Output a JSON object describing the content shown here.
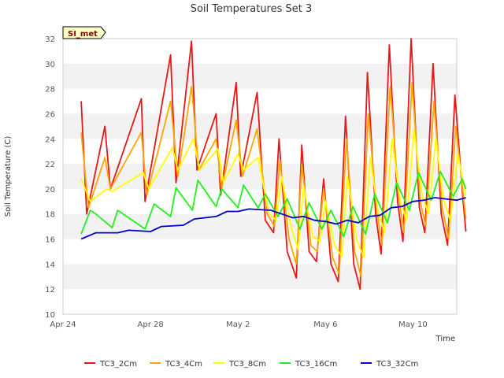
{
  "chart_data": {
    "type": "line",
    "title": "Soil Temperatures Set 3",
    "xlabel": "Time",
    "ylabel": "Soil Temperature (C)",
    "site_label": "SI_met",
    "xlim": [
      "2024-04-24",
      "2024-05-12"
    ],
    "ylim": [
      10,
      32
    ],
    "x_ticks": [
      "Apr 24",
      "Apr 28",
      "May 2",
      "May 6",
      "May 10"
    ],
    "y_ticks": [
      10,
      12,
      14,
      16,
      18,
      20,
      22,
      24,
      26,
      28,
      30,
      32
    ],
    "grid": "horizontal bands",
    "legend_position": "bottom",
    "series": [
      {
        "name": "TC3_2Cm",
        "color": "#e81818",
        "points": [
          [
            "2024-04-24 20:00",
            27.0
          ],
          [
            "2024-04-25 02:00",
            18.0
          ],
          [
            "2024-04-25 22:00",
            25.0
          ],
          [
            "2024-04-26 04:00",
            20.0
          ],
          [
            "2024-04-27 14:00",
            27.2
          ],
          [
            "2024-04-27 18:00",
            19.0
          ],
          [
            "2024-04-28 22:00",
            30.7
          ],
          [
            "2024-04-29 04:00",
            20.5
          ],
          [
            "2024-04-29 21:00",
            31.8
          ],
          [
            "2024-04-30 03:00",
            21.5
          ],
          [
            "2024-05-01 00:00",
            26.0
          ],
          [
            "2024-05-01 05:00",
            19.5
          ],
          [
            "2024-05-01 22:00",
            28.5
          ],
          [
            "2024-05-02 03:00",
            21.0
          ],
          [
            "2024-05-02 21:00",
            27.7
          ],
          [
            "2024-05-03 06:00",
            17.5
          ],
          [
            "2024-05-03 15:00",
            16.5
          ],
          [
            "2024-05-03 21:00",
            24.0
          ],
          [
            "2024-05-04 06:00",
            15.0
          ],
          [
            "2024-05-04 16:00",
            12.9
          ],
          [
            "2024-05-04 22:00",
            23.5
          ],
          [
            "2024-05-05 06:00",
            15.0
          ],
          [
            "2024-05-05 14:00",
            14.2
          ],
          [
            "2024-05-05 22:00",
            20.8
          ],
          [
            "2024-05-06 06:00",
            14.0
          ],
          [
            "2024-05-06 14:00",
            12.6
          ],
          [
            "2024-05-06 22:00",
            25.8
          ],
          [
            "2024-05-07 07:00",
            14.0
          ],
          [
            "2024-05-07 14:00",
            12.0
          ],
          [
            "2024-05-07 22:00",
            29.3
          ],
          [
            "2024-05-08 07:00",
            18.0
          ],
          [
            "2024-05-08 13:00",
            14.8
          ],
          [
            "2024-05-08 22:00",
            31.5
          ],
          [
            "2024-05-09 07:00",
            19.0
          ],
          [
            "2024-05-09 13:00",
            15.8
          ],
          [
            "2024-05-09 22:00",
            32.0
          ],
          [
            "2024-05-10 07:00",
            18.5
          ],
          [
            "2024-05-10 13:00",
            16.5
          ],
          [
            "2024-05-10 22:00",
            30.0
          ],
          [
            "2024-05-11 07:00",
            18.0
          ],
          [
            "2024-05-11 14:00",
            15.5
          ],
          [
            "2024-05-11 22:00",
            27.5
          ],
          [
            "2024-05-12 07:00",
            19.0
          ],
          [
            "2024-05-12 10:00",
            16.6
          ]
        ]
      },
      {
        "name": "TC3_4Cm",
        "color": "#ffa500",
        "points": [
          [
            "2024-04-24 20:00",
            24.5
          ],
          [
            "2024-04-25 04:00",
            18.5
          ],
          [
            "2024-04-25 22:00",
            22.5
          ],
          [
            "2024-04-26 04:00",
            20.0
          ],
          [
            "2024-04-27 14:00",
            24.5
          ],
          [
            "2024-04-27 20:00",
            19.5
          ],
          [
            "2024-04-28 22:00",
            27.0
          ],
          [
            "2024-04-29 06:00",
            21.0
          ],
          [
            "2024-04-29 21:00",
            28.2
          ],
          [
            "2024-04-30 05:00",
            21.5
          ],
          [
            "2024-05-01 00:00",
            24.0
          ],
          [
            "2024-05-01 06:00",
            20.0
          ],
          [
            "2024-05-01 22:00",
            25.5
          ],
          [
            "2024-05-02 05:00",
            21.0
          ],
          [
            "2024-05-02 21:00",
            24.8
          ],
          [
            "2024-05-03 08:00",
            18.0
          ],
          [
            "2024-05-03 16:00",
            17.0
          ],
          [
            "2024-05-03 22:00",
            22.3
          ],
          [
            "2024-05-04 08:00",
            16.0
          ],
          [
            "2024-05-04 16:00",
            14.0
          ],
          [
            "2024-05-04 22:00",
            22.0
          ],
          [
            "2024-05-05 08:00",
            15.5
          ],
          [
            "2024-05-05 15:00",
            15.0
          ],
          [
            "2024-05-05 22:00",
            20.0
          ],
          [
            "2024-05-06 08:00",
            14.5
          ],
          [
            "2024-05-06 15:00",
            13.2
          ],
          [
            "2024-05-06 23:00",
            24.0
          ],
          [
            "2024-05-07 08:00",
            15.0
          ],
          [
            "2024-05-07 15:00",
            13.0
          ],
          [
            "2024-05-07 23:00",
            26.0
          ],
          [
            "2024-05-08 08:00",
            18.5
          ],
          [
            "2024-05-08 14:00",
            15.5
          ],
          [
            "2024-05-08 23:00",
            28.2
          ],
          [
            "2024-05-09 08:00",
            19.5
          ],
          [
            "2024-05-09 14:00",
            16.5
          ],
          [
            "2024-05-09 23:00",
            28.5
          ],
          [
            "2024-05-10 08:00",
            19.0
          ],
          [
            "2024-05-10 14:00",
            17.0
          ],
          [
            "2024-05-10 23:00",
            27.0
          ],
          [
            "2024-05-11 08:00",
            18.5
          ],
          [
            "2024-05-11 15:00",
            16.0
          ],
          [
            "2024-05-11 23:00",
            25.0
          ],
          [
            "2024-05-12 10:00",
            17.6
          ]
        ]
      },
      {
        "name": "TC3_8Cm",
        "color": "#ffff00",
        "points": [
          [
            "2024-04-24 20:00",
            20.8
          ],
          [
            "2024-04-25 06:00",
            19.0
          ],
          [
            "2024-04-26 00:00",
            20.0
          ],
          [
            "2024-04-26 06:00",
            19.8
          ],
          [
            "2024-04-27 16:00",
            21.3
          ],
          [
            "2024-04-27 22:00",
            20.0
          ],
          [
            "2024-04-29 00:00",
            23.3
          ],
          [
            "2024-04-29 06:00",
            21.5
          ],
          [
            "2024-04-29 23:00",
            24.0
          ],
          [
            "2024-04-30 06:00",
            21.5
          ],
          [
            "2024-05-01 02:00",
            23.2
          ],
          [
            "2024-05-01 08:00",
            20.5
          ],
          [
            "2024-05-02 00:00",
            22.8
          ],
          [
            "2024-05-02 06:00",
            21.5
          ],
          [
            "2024-05-02 22:00",
            22.5
          ],
          [
            "2024-05-03 10:00",
            18.0
          ],
          [
            "2024-05-03 18:00",
            17.5
          ],
          [
            "2024-05-04 00:00",
            21.0
          ],
          [
            "2024-05-04 10:00",
            17.0
          ],
          [
            "2024-05-04 18:00",
            15.2
          ],
          [
            "2024-05-05 00:00",
            20.2
          ],
          [
            "2024-05-05 10:00",
            16.2
          ],
          [
            "2024-05-05 18:00",
            15.8
          ],
          [
            "2024-05-06 00:00",
            19.0
          ],
          [
            "2024-05-06 10:00",
            15.5
          ],
          [
            "2024-05-06 18:00",
            14.6
          ],
          [
            "2024-05-07 00:00",
            21.0
          ],
          [
            "2024-05-07 10:00",
            16.0
          ],
          [
            "2024-05-07 18:00",
            14.5
          ],
          [
            "2024-05-08 01:00",
            22.5
          ],
          [
            "2024-05-08 10:00",
            18.0
          ],
          [
            "2024-05-08 17:00",
            16.5
          ],
          [
            "2024-05-09 01:00",
            24.0
          ],
          [
            "2024-05-09 10:00",
            19.0
          ],
          [
            "2024-05-09 17:00",
            17.5
          ],
          [
            "2024-05-10 01:00",
            24.7
          ],
          [
            "2024-05-10 10:00",
            19.5
          ],
          [
            "2024-05-10 17:00",
            18.0
          ],
          [
            "2024-05-11 01:00",
            24.0
          ],
          [
            "2024-05-11 10:00",
            19.0
          ],
          [
            "2024-05-11 17:00",
            17.5
          ],
          [
            "2024-05-12 01:00",
            22.8
          ],
          [
            "2024-05-12 10:00",
            19.5
          ]
        ]
      },
      {
        "name": "TC3_16Cm",
        "color": "#22ee22",
        "points": [
          [
            "2024-04-24 20:00",
            16.4
          ],
          [
            "2024-04-25 06:00",
            18.3
          ],
          [
            "2024-04-25 12:00",
            18.0
          ],
          [
            "2024-04-26 06:00",
            16.9
          ],
          [
            "2024-04-26 12:00",
            18.3
          ],
          [
            "2024-04-27 18:00",
            16.8
          ],
          [
            "2024-04-28 04:00",
            18.8
          ],
          [
            "2024-04-28 22:00",
            17.8
          ],
          [
            "2024-04-29 04:00",
            20.1
          ],
          [
            "2024-04-29 22:00",
            18.3
          ],
          [
            "2024-04-30 04:00",
            20.7
          ],
          [
            "2024-05-01 00:00",
            18.6
          ],
          [
            "2024-05-01 06:00",
            20.0
          ],
          [
            "2024-05-02 00:00",
            18.5
          ],
          [
            "2024-05-02 06:00",
            20.3
          ],
          [
            "2024-05-02 22:00",
            18.5
          ],
          [
            "2024-05-03 06:00",
            19.6
          ],
          [
            "2024-05-03 20:00",
            17.8
          ],
          [
            "2024-05-04 06:00",
            19.2
          ],
          [
            "2024-05-04 20:00",
            16.8
          ],
          [
            "2024-05-05 06:00",
            18.9
          ],
          [
            "2024-05-05 20:00",
            16.8
          ],
          [
            "2024-05-06 06:00",
            18.3
          ],
          [
            "2024-05-06 20:00",
            16.2
          ],
          [
            "2024-05-07 06:00",
            18.6
          ],
          [
            "2024-05-07 20:00",
            16.4
          ],
          [
            "2024-05-08 06:00",
            19.6
          ],
          [
            "2024-05-08 20:00",
            17.3
          ],
          [
            "2024-05-09 06:00",
            20.5
          ],
          [
            "2024-05-09 20:00",
            18.3
          ],
          [
            "2024-05-10 06:00",
            21.3
          ],
          [
            "2024-05-10 20:00",
            19.1
          ],
          [
            "2024-05-11 06:00",
            21.4
          ],
          [
            "2024-05-11 20:00",
            19.4
          ],
          [
            "2024-05-12 06:00",
            20.8
          ],
          [
            "2024-05-12 10:00",
            20.0
          ]
        ]
      },
      {
        "name": "TC3_32Cm",
        "color": "#0000cc",
        "points": [
          [
            "2024-04-24 20:00",
            16.0
          ],
          [
            "2024-04-25 12:00",
            16.5
          ],
          [
            "2024-04-26 12:00",
            16.5
          ],
          [
            "2024-04-27 00:00",
            16.7
          ],
          [
            "2024-04-28 00:00",
            16.6
          ],
          [
            "2024-04-28 12:00",
            17.0
          ],
          [
            "2024-04-29 12:00",
            17.1
          ],
          [
            "2024-04-30 00:00",
            17.6
          ],
          [
            "2024-05-01 00:00",
            17.8
          ],
          [
            "2024-05-01 12:00",
            18.2
          ],
          [
            "2024-05-02 00:00",
            18.2
          ],
          [
            "2024-05-02 12:00",
            18.4
          ],
          [
            "2024-05-03 12:00",
            18.3
          ],
          [
            "2024-05-04 00:00",
            18.0
          ],
          [
            "2024-05-04 12:00",
            17.7
          ],
          [
            "2024-05-05 00:00",
            17.8
          ],
          [
            "2024-05-05 12:00",
            17.5
          ],
          [
            "2024-05-06 00:00",
            17.4
          ],
          [
            "2024-05-06 12:00",
            17.2
          ],
          [
            "2024-05-07 00:00",
            17.5
          ],
          [
            "2024-05-07 12:00",
            17.3
          ],
          [
            "2024-05-08 00:00",
            17.8
          ],
          [
            "2024-05-08 12:00",
            17.9
          ],
          [
            "2024-05-09 00:00",
            18.5
          ],
          [
            "2024-05-09 12:00",
            18.6
          ],
          [
            "2024-05-10 00:00",
            19.0
          ],
          [
            "2024-05-10 12:00",
            19.1
          ],
          [
            "2024-05-11 00:00",
            19.3
          ],
          [
            "2024-05-11 12:00",
            19.2
          ],
          [
            "2024-05-12 00:00",
            19.1
          ],
          [
            "2024-05-12 10:00",
            19.3
          ]
        ]
      }
    ]
  }
}
